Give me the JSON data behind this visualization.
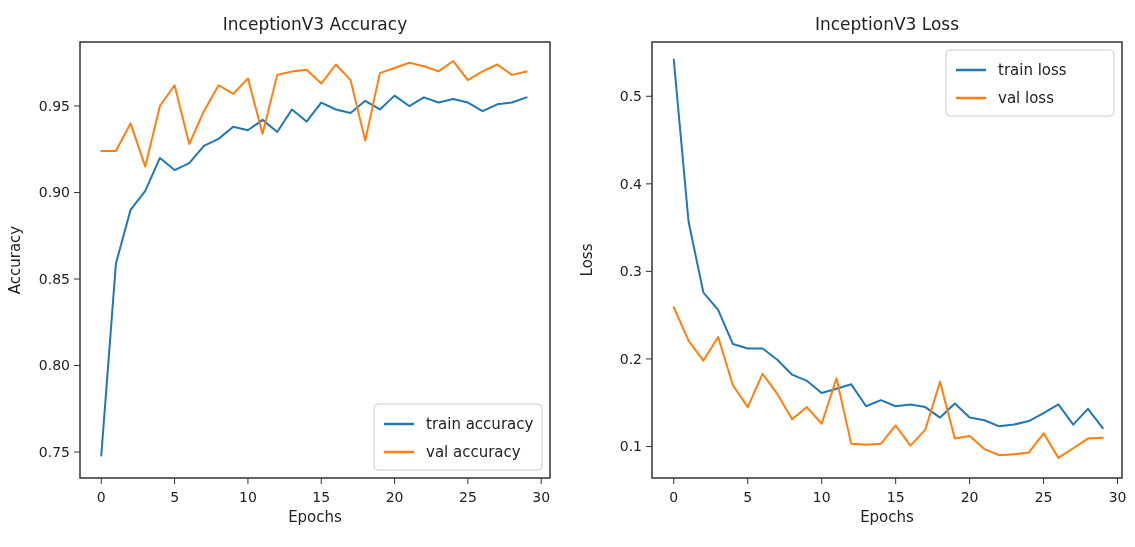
{
  "chart_data": [
    {
      "type": "line",
      "title": "InceptionV3 Accuracy",
      "xlabel": "Epochs",
      "ylabel": "Accuracy",
      "x": [
        0,
        1,
        2,
        3,
        4,
        5,
        6,
        7,
        8,
        9,
        10,
        11,
        12,
        13,
        14,
        15,
        16,
        17,
        18,
        19,
        20,
        21,
        22,
        23,
        24,
        25,
        26,
        27,
        28,
        29
      ],
      "xlim": [
        -1.45,
        30.6
      ],
      "xticks": [
        0,
        5,
        10,
        15,
        20,
        25,
        30
      ],
      "ylim": [
        0.735,
        0.987
      ],
      "yticks": [
        0.75,
        {
          "value": 0.8,
          "label": "0.80"
        },
        0.85,
        {
          "value": 0.9,
          "label": "0.90"
        },
        0.95
      ],
      "legend": "bottom right",
      "series": [
        {
          "name": "train accuracy",
          "color": "#1f77b4",
          "values": [
            0.748,
            0.859,
            0.89,
            0.901,
            0.92,
            0.913,
            0.917,
            0.927,
            0.931,
            0.938,
            0.936,
            0.942,
            0.935,
            0.948,
            0.941,
            0.952,
            0.948,
            0.946,
            0.953,
            0.948,
            0.956,
            0.95,
            0.955,
            0.952,
            0.954,
            0.952,
            0.947,
            0.951,
            0.952,
            0.955
          ]
        },
        {
          "name": "val accuracy",
          "color": "#ff7f0e",
          "values": [
            0.924,
            0.924,
            0.94,
            0.915,
            0.95,
            0.962,
            0.928,
            0.947,
            0.962,
            0.957,
            0.966,
            0.934,
            0.968,
            0.97,
            0.971,
            0.963,
            0.974,
            0.965,
            0.93,
            0.969,
            0.972,
            0.975,
            0.973,
            0.97,
            0.976,
            0.965,
            0.97,
            0.974,
            0.968,
            0.97
          ]
        }
      ]
    },
    {
      "type": "line",
      "title": "InceptionV3 Loss",
      "xlabel": "Epochs",
      "ylabel": "Loss",
      "x": [
        0,
        1,
        2,
        3,
        4,
        5,
        6,
        7,
        8,
        9,
        10,
        11,
        12,
        13,
        14,
        15,
        16,
        17,
        18,
        19,
        20,
        21,
        22,
        23,
        24,
        25,
        26,
        27,
        28,
        29
      ],
      "xlim": [
        -1.47,
        30.3
      ],
      "xticks": [
        0,
        5,
        10,
        15,
        20,
        25,
        30
      ],
      "ylim": [
        0.064,
        0.562
      ],
      "yticks": [
        0.1,
        0.2,
        0.3,
        0.4,
        0.5
      ],
      "legend": "top right",
      "series": [
        {
          "name": "train loss",
          "color": "#1f77b4",
          "values": [
            0.542,
            0.357,
            0.276,
            0.256,
            0.217,
            0.212,
            0.212,
            0.199,
            0.182,
            0.175,
            0.161,
            0.166,
            0.171,
            0.146,
            0.153,
            0.146,
            0.148,
            0.145,
            0.133,
            0.149,
            0.133,
            0.13,
            0.123,
            0.125,
            0.129,
            0.138,
            0.148,
            0.125,
            0.143,
            0.121
          ]
        },
        {
          "name": "val loss",
          "color": "#ff7f0e",
          "values": [
            0.259,
            0.221,
            0.198,
            0.225,
            0.17,
            0.145,
            0.183,
            0.16,
            0.131,
            0.145,
            0.126,
            0.178,
            0.103,
            0.102,
            0.103,
            0.124,
            0.101,
            0.119,
            0.174,
            0.109,
            0.112,
            0.097,
            0.09,
            0.091,
            0.093,
            0.115,
            0.087,
            0.098,
            0.109,
            0.11
          ]
        }
      ]
    }
  ]
}
